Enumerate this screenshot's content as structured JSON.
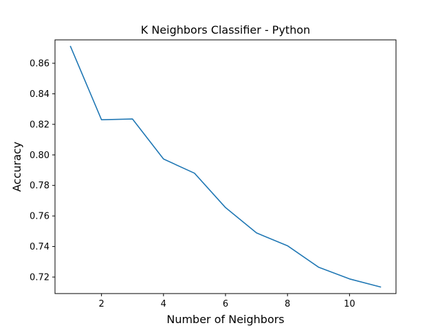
{
  "chart_data": {
    "type": "line",
    "title": "K Neighbors Classifier - Python",
    "xlabel": "Number of Neighbors",
    "ylabel": "Accuracy",
    "xlim": [
      0.5,
      11.5
    ],
    "ylim": [
      0.7092,
      0.8753
    ],
    "x_ticks": [
      2,
      4,
      6,
      8,
      10
    ],
    "y_ticks": [
      0.72,
      0.74,
      0.76,
      0.78,
      0.8,
      0.82,
      0.84,
      0.86
    ],
    "grid": false,
    "series": [
      {
        "color": "#1f77b4",
        "x": [
          1,
          2,
          3,
          4,
          5,
          6,
          7,
          8,
          9,
          10,
          11
        ],
        "y": [
          0.871,
          0.823,
          0.8235,
          0.7973,
          0.788,
          0.7655,
          0.7489,
          0.7405,
          0.7265,
          0.7188,
          0.7135
        ]
      }
    ]
  }
}
